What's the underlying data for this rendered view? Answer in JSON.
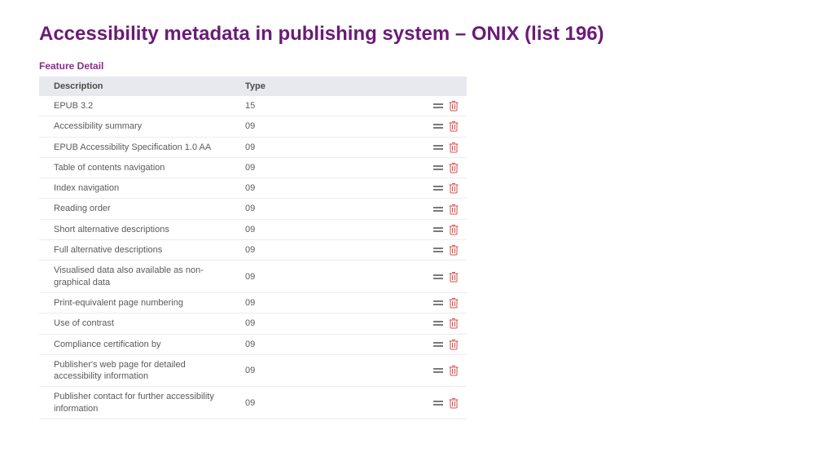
{
  "title": "Accessibility metadata in publishing system – ONIX (list 196)",
  "section_label": "Feature Detail",
  "colors": {
    "title": "#6b1a78",
    "section": "#8b2a8f",
    "header_bg": "#e8e9ee",
    "row_border": "#ececec",
    "text": "#5a5a5a",
    "drag_icon": "#7a7a7a",
    "trash_icon": "#d84c4c"
  },
  "table": {
    "columns": {
      "description": "Description",
      "type": "Type"
    },
    "rows": [
      {
        "description": "EPUB 3.2",
        "type": "15"
      },
      {
        "description": "Accessibility summary",
        "type": "09"
      },
      {
        "description": "EPUB Accessibility Specification 1.0 AA",
        "type": "09"
      },
      {
        "description": "Table of contents navigation",
        "type": "09"
      },
      {
        "description": "Index navigation",
        "type": "09"
      },
      {
        "description": "Reading order",
        "type": "09"
      },
      {
        "description": "Short alternative descriptions",
        "type": "09"
      },
      {
        "description": "Full alternative descriptions",
        "type": "09"
      },
      {
        "description": "Visualised data also available as non-graphical data",
        "type": "09"
      },
      {
        "description": "Print-equivalent page numbering",
        "type": "09"
      },
      {
        "description": "Use of contrast",
        "type": "09"
      },
      {
        "description": "Compliance certification by",
        "type": "09"
      },
      {
        "description": "Publisher's web page for detailed accessibility information",
        "type": "09"
      },
      {
        "description": "Publisher contact for further accessibility information",
        "type": "09"
      }
    ]
  }
}
